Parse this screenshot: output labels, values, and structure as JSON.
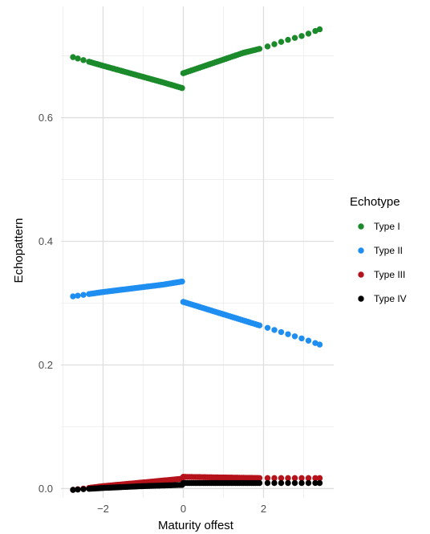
{
  "chart_data": {
    "type": "scatter",
    "xlabel": "Maturity offest",
    "ylabel": "Echopattern",
    "xlim": [
      -3.05,
      3.75
    ],
    "ylim": [
      -0.015,
      0.78
    ],
    "x_ticks": [
      -2,
      0,
      2
    ],
    "x_tick_labels": [
      "−2",
      "0",
      "2"
    ],
    "y_ticks": [
      0.0,
      0.2,
      0.4,
      0.6
    ],
    "y_tick_labels": [
      "0.0",
      "0.2",
      "0.4",
      "0.6"
    ],
    "grid": true,
    "legend": {
      "title": "Echotype",
      "position": "right"
    },
    "series": [
      {
        "name": "Type I",
        "color": "#1a8a2a",
        "segments": [
          {
            "x": [
              -2.75,
              -2.0,
              -1.0,
              -0.5,
              -0.03
            ],
            "y": [
              0.698,
              0.684,
              0.666,
              0.657,
              0.648
            ]
          },
          {
            "x": [
              0.0,
              0.5,
              1.0,
              1.5,
              2.0,
              2.5,
              3.0,
              3.4
            ],
            "y": [
              0.672,
              0.683,
              0.694,
              0.705,
              0.713,
              0.724,
              0.733,
              0.743
            ]
          }
        ]
      },
      {
        "name": "Type II",
        "color": "#1f8ef1",
        "segments": [
          {
            "x": [
              -2.75,
              -2.0,
              -1.0,
              -0.5,
              -0.03
            ],
            "y": [
              0.311,
              0.318,
              0.326,
              0.33,
              0.335
            ]
          },
          {
            "x": [
              0.0,
              0.5,
              1.0,
              1.5,
              2.0,
              2.5,
              3.0,
              3.4
            ],
            "y": [
              0.302,
              0.292,
              0.282,
              0.272,
              0.262,
              0.252,
              0.242,
              0.233
            ]
          }
        ]
      },
      {
        "name": "Type III",
        "color": "#b5121b",
        "segments": [
          {
            "x": [
              -2.75,
              -2.0,
              -1.0,
              -0.03
            ],
            "y": [
              -0.002,
              0.004,
              0.01,
              0.016
            ]
          },
          {
            "x": [
              0.0,
              1.0,
              2.0,
              3.0,
              3.4
            ],
            "y": [
              0.019,
              0.018,
              0.017,
              0.017,
              0.017
            ]
          }
        ]
      },
      {
        "name": "Type IV",
        "color": "#000000",
        "segments": [
          {
            "x": [
              -2.75,
              -2.0,
              -1.0,
              -0.03
            ],
            "y": [
              -0.002,
              0.001,
              0.004,
              0.006
            ]
          },
          {
            "x": [
              0.0,
              1.0,
              2.0,
              3.0,
              3.4
            ],
            "y": [
              0.009,
              0.009,
              0.009,
              0.009,
              0.009
            ]
          }
        ]
      }
    ]
  }
}
